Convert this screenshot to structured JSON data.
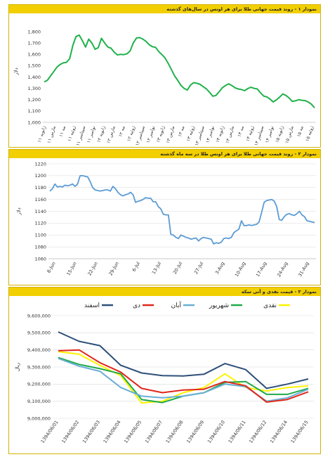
{
  "chart_data": [
    {
      "type": "line",
      "title": "نمودار ۱ - روند قیمت جهانی طلا برای هر اونس در سال‌های گذشته",
      "ylabel": "دلار",
      "ylim": [
        1000,
        1900
      ],
      "yticks": [
        1000,
        1100,
        1200,
        1300,
        1400,
        1500,
        1600,
        1700,
        1800
      ],
      "ytick_labels": [
        "1,000",
        "1,100",
        "1,200",
        "1,300",
        "1,400",
        "1,500",
        "1,600",
        "1,700",
        "1,800"
      ],
      "color": "#21b14b",
      "x_labels": [
        "ژانویه ۱۱",
        "مارس ۱۱",
        "مه ۱۱",
        "ژوئیه ۱۱",
        "سپتامبر ۱۱",
        "نوامبر ۱۱",
        "ژانویه ۱۲",
        "مارس ۱۲",
        "مه ۱۲",
        "ژوئیه ۱۲",
        "سپتامبر ۱۲",
        "نوامبر ۱۲",
        "ژانویه ۱۳",
        "مارس ۱۳",
        "مه ۱۳",
        "ژوئیه ۱۳",
        "سپتامبر ۱۳",
        "نوامبر ۱۳",
        "ژانویه ۱۴",
        "مارس ۱۴",
        "مه ۱۴",
        "ژوئیه ۱۴",
        "سپتامبر ۱۴",
        "نوامبر ۱۴",
        "ژانویه ۱۵",
        "مارس ۱۵",
        "مه ۱۵",
        "ژوئیه ۱۵"
      ],
      "values": [
        1357,
        1372,
        1410,
        1448,
        1488,
        1510,
        1525,
        1530,
        1562,
        1680,
        1758,
        1770,
        1720,
        1665,
        1735,
        1700,
        1645,
        1660,
        1742,
        1700,
        1665,
        1655,
        1620,
        1595,
        1600,
        1598,
        1605,
        1630,
        1700,
        1745,
        1748,
        1735,
        1715,
        1685,
        1668,
        1662,
        1625,
        1598,
        1568,
        1520,
        1465,
        1410,
        1370,
        1325,
        1300,
        1285,
        1330,
        1350,
        1345,
        1335,
        1315,
        1295,
        1265,
        1230,
        1238,
        1270,
        1305,
        1325,
        1340,
        1325,
        1305,
        1295,
        1290,
        1280,
        1298,
        1310,
        1300,
        1295,
        1260,
        1232,
        1225,
        1205,
        1180,
        1198,
        1222,
        1250,
        1238,
        1215,
        1185,
        1190,
        1200,
        1195,
        1192,
        1180,
        1160,
        1128
      ]
    },
    {
      "type": "line",
      "title": "نمودار ۲ - روند قیمت جهانی طلا برای هر اونس طلا در سه ماه گذشته",
      "ylabel": "دلار",
      "ylim": [
        1060,
        1220
      ],
      "yticks": [
        1060,
        1080,
        1100,
        1120,
        1140,
        1160,
        1180,
        1200,
        1220
      ],
      "ytick_labels": [
        "1060",
        "1080",
        "1100",
        "1120",
        "1140",
        "1160",
        "1180",
        "1200",
        "1220"
      ],
      "color": "#5b9bd5",
      "x_labels": [
        "8-Jun",
        "15-Jun",
        "22-Jun",
        "29-Jun",
        "6-Jul",
        "13-Jul",
        "20-Jul",
        "27-Jul",
        "3-Aug",
        "10-Aug",
        "17-Aug",
        "24-Aug",
        "31-Aug"
      ],
      "values": [
        1174,
        1178,
        1186,
        1181,
        1182,
        1181,
        1184,
        1183,
        1184,
        1186,
        1182,
        1186,
        1200,
        1200,
        1199,
        1198,
        1190,
        1180,
        1176,
        1175,
        1174,
        1175,
        1176,
        1176,
        1174,
        1182,
        1178,
        1172,
        1168,
        1166,
        1168,
        1169,
        1172,
        1168,
        1155,
        1157,
        1158,
        1160,
        1163,
        1162,
        1162,
        1156,
        1156,
        1148,
        1144,
        1135,
        1134,
        1134,
        1101,
        1100,
        1096,
        1094,
        1100,
        1098,
        1096,
        1095,
        1093,
        1094,
        1095,
        1090,
        1094,
        1096,
        1095,
        1094,
        1093,
        1085,
        1087,
        1086,
        1088,
        1094,
        1095,
        1094,
        1096,
        1104,
        1107,
        1110,
        1124,
        1116,
        1116,
        1117,
        1116,
        1117,
        1118,
        1122,
        1138,
        1155,
        1158,
        1159,
        1160,
        1157,
        1148,
        1126,
        1125,
        1131,
        1135,
        1136,
        1134,
        1133,
        1136,
        1140,
        1134,
        1131,
        1124,
        1123,
        1122,
        1121
      ]
    },
    {
      "type": "line",
      "title": "نمودار ۳ - قیمت نقدی و آتی سکه",
      "ylabel": "ریال",
      "ylim": [
        9000000,
        9600000
      ],
      "yticks": [
        9000000,
        9100000,
        9200000,
        9300000,
        9400000,
        9500000,
        9600000
      ],
      "ytick_labels": [
        "9,000,000",
        "9,100,000",
        "9,200,000",
        "9,300,000",
        "9,400,000",
        "9,500,000",
        "9,600,000"
      ],
      "categories": [
        "1394/06/01",
        "1394/06/02",
        "1394/06/03",
        "1394/06/04",
        "1394/06/05",
        "1394/06/07",
        "1394/06/08",
        "1394/06/09",
        "1394/06/10",
        "1394/06/11",
        "1394/06/12",
        "1394/06/14",
        "1394/06/15"
      ],
      "series": [
        {
          "name": "نقدی",
          "color": "#fff200",
          "values": [
            9390000,
            9375000,
            9310000,
            9250000,
            9090000,
            9100000,
            9150000,
            9180000,
            9260000,
            9180000,
            9160000,
            9180000,
            9190000
          ]
        },
        {
          "name": "شهریور",
          "color": "#1faa4a",
          "values": [
            9355000,
            9315000,
            9290000,
            9260000,
            9110000,
            9092000,
            9130000,
            9150000,
            9210000,
            9215000,
            9140000,
            9140000,
            9175000
          ]
        },
        {
          "name": "آبان",
          "color": "#6aaed6",
          "values": [
            9350000,
            9305000,
            9275000,
            9180000,
            9130000,
            9120000,
            9130000,
            9150000,
            9200000,
            9185000,
            9100000,
            9120000,
            9170000
          ]
        },
        {
          "name": "دی",
          "color": "#e0271b",
          "values": [
            9395000,
            9400000,
            9325000,
            9270000,
            9175000,
            9150000,
            9165000,
            9170000,
            9215000,
            9190000,
            9095000,
            9110000,
            9155000
          ]
        },
        {
          "name": "اسفند",
          "color": "#2d4f79",
          "values": [
            9505000,
            9450000,
            9425000,
            9310000,
            9265000,
            9250000,
            9248000,
            9258000,
            9320000,
            9285000,
            9175000,
            9200000,
            9230000
          ]
        }
      ]
    }
  ]
}
